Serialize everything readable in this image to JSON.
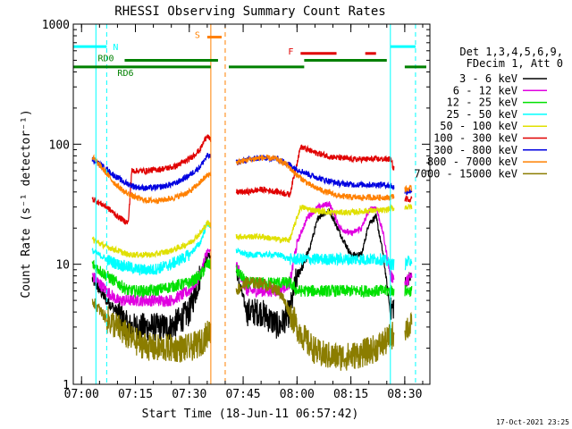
{
  "chart_data": {
    "type": "line",
    "title": "RHESSI Observing Summary Count Rates",
    "xlabel": "Start Time (18-Jun-11 06:57:42)",
    "ylabel": "Count Rate (s⁻¹ detector⁻¹)",
    "yscale": "log",
    "ylim": [
      1,
      1000
    ],
    "xlim": [
      "06:57:42",
      "08:37:00"
    ],
    "x_ticks": [
      "07:00",
      "07:15",
      "07:30",
      "07:45",
      "08:00",
      "08:15",
      "08:30"
    ],
    "y_ticks": [
      "1",
      "10",
      "100",
      "1000"
    ],
    "footer_date": "17-Oct-2021 23:25",
    "legend_header": [
      "Det 1,3,4,5,6,9,",
      "FDecim 1, Att 0"
    ],
    "legend_placement": "right",
    "gaps": [
      [
        "07:36",
        "07:43"
      ],
      [
        "08:27",
        "08:30"
      ]
    ],
    "series": [
      {
        "name": "3 - 6 keV",
        "color": "#000000",
        "points": [
          [
            "07:03",
            7.5
          ],
          [
            "07:07",
            5
          ],
          [
            "07:10",
            4
          ],
          [
            "07:13",
            3
          ],
          [
            "07:16",
            3
          ],
          [
            "07:20",
            3
          ],
          [
            "07:25",
            3
          ],
          [
            "07:30",
            4
          ],
          [
            "07:33",
            8
          ],
          [
            "07:35",
            12
          ],
          [
            "07:43",
            9
          ],
          [
            "07:46",
            4
          ],
          [
            "07:50",
            4
          ],
          [
            "07:55",
            3
          ],
          [
            "07:58",
            4
          ],
          [
            "08:00",
            8
          ],
          [
            "08:03",
            12
          ],
          [
            "08:06",
            25
          ],
          [
            "08:09",
            28
          ],
          [
            "08:12",
            18
          ],
          [
            "08:15",
            12
          ],
          [
            "08:18",
            12
          ],
          [
            "08:20",
            22
          ],
          [
            "08:22",
            25
          ],
          [
            "08:24",
            12
          ],
          [
            "08:26",
            4
          ],
          [
            "08:30",
            7
          ],
          [
            "08:32",
            8
          ]
        ]
      },
      {
        "name": "6 - 12 keV",
        "color": "#e000e0",
        "points": [
          [
            "07:03",
            8
          ],
          [
            "07:07",
            6
          ],
          [
            "07:10",
            5
          ],
          [
            "07:13",
            5
          ],
          [
            "07:16",
            5
          ],
          [
            "07:20",
            5
          ],
          [
            "07:25",
            5
          ],
          [
            "07:30",
            6
          ],
          [
            "07:33",
            8
          ],
          [
            "07:35",
            13
          ],
          [
            "07:43",
            10
          ],
          [
            "07:46",
            6
          ],
          [
            "07:50",
            6
          ],
          [
            "07:55",
            6
          ],
          [
            "07:58",
            7
          ],
          [
            "08:00",
            15
          ],
          [
            "08:03",
            25
          ],
          [
            "08:06",
            30
          ],
          [
            "08:09",
            32
          ],
          [
            "08:12",
            20
          ],
          [
            "08:15",
            18
          ],
          [
            "08:18",
            20
          ],
          [
            "08:20",
            28
          ],
          [
            "08:22",
            30
          ],
          [
            "08:24",
            18
          ],
          [
            "08:26",
            8
          ],
          [
            "08:30",
            7
          ],
          [
            "08:32",
            8
          ]
        ]
      },
      {
        "name": "12 - 25 keV",
        "color": "#00e000",
        "points": [
          [
            "07:03",
            10
          ],
          [
            "07:07",
            8
          ],
          [
            "07:10",
            7
          ],
          [
            "07:13",
            6
          ],
          [
            "07:16",
            6
          ],
          [
            "07:20",
            6
          ],
          [
            "07:25",
            6.5
          ],
          [
            "07:30",
            7
          ],
          [
            "07:33",
            8
          ],
          [
            "07:35",
            10
          ],
          [
            "07:43",
            9
          ],
          [
            "07:46",
            7
          ],
          [
            "07:50",
            7
          ],
          [
            "07:55",
            7
          ],
          [
            "07:58",
            7
          ],
          [
            "08:00",
            6
          ],
          [
            "08:03",
            6
          ],
          [
            "08:06",
            6
          ],
          [
            "08:09",
            6
          ],
          [
            "08:12",
            6
          ],
          [
            "08:15",
            6
          ],
          [
            "08:18",
            6
          ],
          [
            "08:21",
            6
          ],
          [
            "08:24",
            6
          ],
          [
            "08:26",
            6
          ],
          [
            "08:30",
            6
          ],
          [
            "08:32",
            6
          ]
        ]
      },
      {
        "name": "25 - 50 keV",
        "color": "#00ffff",
        "points": [
          [
            "07:03",
            13
          ],
          [
            "07:07",
            11
          ],
          [
            "07:10",
            10
          ],
          [
            "07:13",
            9.5
          ],
          [
            "07:16",
            9
          ],
          [
            "07:20",
            9
          ],
          [
            "07:25",
            10
          ],
          [
            "07:30",
            12
          ],
          [
            "07:33",
            15
          ],
          [
            "07:35",
            22
          ],
          [
            "07:43",
            13
          ],
          [
            "07:46",
            12
          ],
          [
            "07:50",
            12
          ],
          [
            "07:55",
            12
          ],
          [
            "07:58",
            11
          ],
          [
            "08:00",
            11
          ],
          [
            "08:03",
            11
          ],
          [
            "08:06",
            11
          ],
          [
            "08:09",
            11
          ],
          [
            "08:12",
            11
          ],
          [
            "08:15",
            11
          ],
          [
            "08:18",
            11
          ],
          [
            "08:21",
            11
          ],
          [
            "08:24",
            11
          ],
          [
            "08:26",
            10
          ],
          [
            "08:30",
            10
          ],
          [
            "08:32",
            11
          ]
        ]
      },
      {
        "name": "50 - 100 keV",
        "color": "#e0e000",
        "points": [
          [
            "07:03",
            16
          ],
          [
            "07:07",
            14
          ],
          [
            "07:10",
            13
          ],
          [
            "07:13",
            12
          ],
          [
            "07:16",
            12
          ],
          [
            "07:20",
            12
          ],
          [
            "07:25",
            13
          ],
          [
            "07:30",
            15
          ],
          [
            "07:33",
            18
          ],
          [
            "07:35",
            22
          ],
          [
            "07:43",
            17
          ],
          [
            "07:46",
            17
          ],
          [
            "07:50",
            17
          ],
          [
            "07:55",
            16
          ],
          [
            "07:58",
            16
          ],
          [
            "08:01",
            30
          ],
          [
            "08:05",
            28
          ],
          [
            "08:10",
            27
          ],
          [
            "08:15",
            27
          ],
          [
            "08:20",
            28
          ],
          [
            "08:24",
            28
          ],
          [
            "08:26",
            29
          ],
          [
            "08:30",
            30
          ],
          [
            "08:32",
            30
          ]
        ]
      },
      {
        "name": "100 - 300 keV",
        "color": "#e00000",
        "points": [
          [
            "07:03",
            35
          ],
          [
            "07:07",
            30
          ],
          [
            "07:10",
            25
          ],
          [
            "07:13",
            22
          ],
          [
            "07:14",
            60
          ],
          [
            "07:18",
            60
          ],
          [
            "07:22",
            62
          ],
          [
            "07:26",
            65
          ],
          [
            "07:30",
            75
          ],
          [
            "07:33",
            90
          ],
          [
            "07:35",
            120
          ],
          [
            "07:43",
            40
          ],
          [
            "07:46",
            40
          ],
          [
            "07:50",
            42
          ],
          [
            "07:55",
            40
          ],
          [
            "07:58",
            38
          ],
          [
            "08:01",
            95
          ],
          [
            "08:05",
            85
          ],
          [
            "08:10",
            78
          ],
          [
            "08:15",
            75
          ],
          [
            "08:20",
            75
          ],
          [
            "08:24",
            75
          ],
          [
            "08:26",
            75
          ],
          [
            "08:30",
            35
          ],
          [
            "08:32",
            35
          ]
        ]
      },
      {
        "name": "300 - 800 keV",
        "color": "#0000e0",
        "points": [
          [
            "07:03",
            75
          ],
          [
            "07:06",
            65
          ],
          [
            "07:09",
            55
          ],
          [
            "07:12",
            48
          ],
          [
            "07:15",
            44
          ],
          [
            "07:18",
            43
          ],
          [
            "07:22",
            44
          ],
          [
            "07:26",
            47
          ],
          [
            "07:30",
            55
          ],
          [
            "07:33",
            65
          ],
          [
            "07:35",
            80
          ],
          [
            "07:43",
            70
          ],
          [
            "07:46",
            74
          ],
          [
            "07:50",
            77
          ],
          [
            "07:54",
            76
          ],
          [
            "07:57",
            70
          ],
          [
            "08:00",
            62
          ],
          [
            "08:04",
            55
          ],
          [
            "08:08",
            50
          ],
          [
            "08:12",
            47
          ],
          [
            "08:16",
            46
          ],
          [
            "08:20",
            46
          ],
          [
            "08:24",
            46
          ],
          [
            "08:26",
            45
          ],
          [
            "08:30",
            40
          ],
          [
            "08:32",
            41
          ]
        ]
      },
      {
        "name": "800 - 7000 keV",
        "color": "#ff8000",
        "points": [
          [
            "07:03",
            78
          ],
          [
            "07:06",
            62
          ],
          [
            "07:09",
            48
          ],
          [
            "07:12",
            40
          ],
          [
            "07:15",
            36
          ],
          [
            "07:18",
            34
          ],
          [
            "07:22",
            34
          ],
          [
            "07:26",
            36
          ],
          [
            "07:30",
            40
          ],
          [
            "07:33",
            48
          ],
          [
            "07:35",
            55
          ],
          [
            "07:43",
            70
          ],
          [
            "07:46",
            74
          ],
          [
            "07:50",
            77
          ],
          [
            "07:54",
            76
          ],
          [
            "07:57",
            68
          ],
          [
            "08:00",
            55
          ],
          [
            "08:04",
            45
          ],
          [
            "08:08",
            40
          ],
          [
            "08:12",
            37
          ],
          [
            "08:16",
            36
          ],
          [
            "08:20",
            36
          ],
          [
            "08:24",
            36
          ],
          [
            "08:26",
            36
          ],
          [
            "08:30",
            42
          ],
          [
            "08:32",
            43
          ]
        ]
      },
      {
        "name": "7000 - 15000 keV",
        "color": "#8b7d00",
        "points": [
          [
            "07:03",
            5
          ],
          [
            "07:07",
            3.5
          ],
          [
            "07:10",
            3
          ],
          [
            "07:13",
            2.5
          ],
          [
            "07:16",
            2.2
          ],
          [
            "07:20",
            2
          ],
          [
            "07:25",
            2
          ],
          [
            "07:30",
            2
          ],
          [
            "07:33",
            2.2
          ],
          [
            "07:35",
            2.6
          ],
          [
            "07:43",
            6
          ],
          [
            "07:46",
            7
          ],
          [
            "07:50",
            7
          ],
          [
            "07:55",
            6
          ],
          [
            "07:58",
            4
          ],
          [
            "08:00",
            3
          ],
          [
            "08:03",
            2.2
          ],
          [
            "08:06",
            1.8
          ],
          [
            "08:10",
            1.7
          ],
          [
            "08:14",
            1.7
          ],
          [
            "08:18",
            1.8
          ],
          [
            "08:22",
            2
          ],
          [
            "08:25",
            2.3
          ],
          [
            "08:26",
            2.5
          ],
          [
            "08:30",
            3
          ],
          [
            "08:32",
            3
          ]
        ]
      }
    ],
    "flags": [
      {
        "label": "N",
        "color": "#00ffff",
        "y": 650,
        "segments": [
          [
            "06:57:42",
            "07:07"
          ],
          [
            "08:26",
            "08:33"
          ]
        ]
      },
      {
        "label": "S",
        "color": "#ff8000",
        "y": 780,
        "segments": [
          [
            "07:35",
            "07:39"
          ]
        ]
      },
      {
        "label": "F",
        "color": "#e00000",
        "y": 570,
        "segments": [
          [
            "08:01",
            "08:11"
          ],
          [
            "08:19",
            "08:22"
          ]
        ]
      },
      {
        "label": "RD0",
        "color": "#008000",
        "y": 500,
        "segments": [
          [
            "07:12",
            "07:38"
          ],
          [
            "08:02",
            "08:25"
          ]
        ]
      },
      {
        "label": "RD6",
        "color": "#008000",
        "y": 440,
        "segments": [
          [
            "06:57:42",
            "07:36"
          ],
          [
            "07:41",
            "08:02"
          ],
          [
            "08:30",
            "08:36"
          ]
        ]
      }
    ],
    "vertical_lines": [
      {
        "time": "07:04",
        "color": "#00ffff",
        "style": "solid"
      },
      {
        "time": "07:07",
        "color": "#00ffff",
        "style": "dashed"
      },
      {
        "time": "07:36",
        "color": "#ff8000",
        "style": "solid"
      },
      {
        "time": "07:40",
        "color": "#ff8000",
        "style": "dashed"
      },
      {
        "time": "08:26",
        "color": "#00ffff",
        "style": "solid"
      },
      {
        "time": "08:33",
        "color": "#00ffff",
        "style": "dashed"
      }
    ]
  }
}
